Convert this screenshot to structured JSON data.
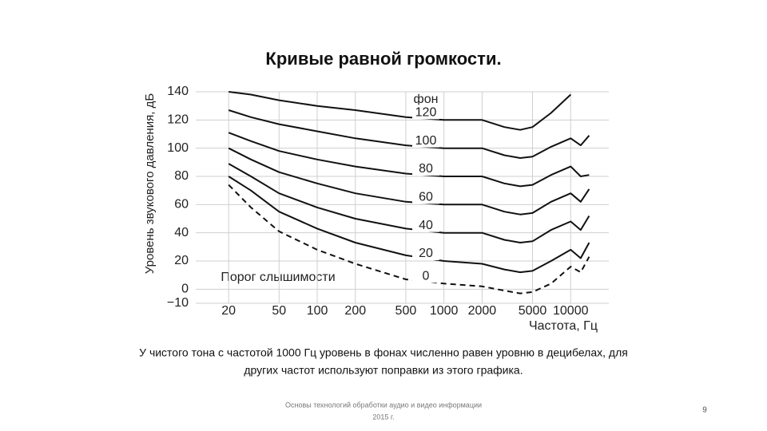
{
  "slide": {
    "title": "Кривые равной громкости.",
    "caption": [
      "У чистого тона с частотой 1000 Гц уровень в фонах численно равен уровню в децибелах, для",
      "других частот используют поправки из этого графика."
    ],
    "footer": [
      "Основы технологий обработки аудио и видео информации",
      "2015 г."
    ],
    "page_number": "9"
  },
  "chart_data": {
    "type": "line",
    "x_label": "Частота, Гц",
    "y_label": "Уровень звукового давления, дБ",
    "legend_title": "фон",
    "annotation": "Порог слышимости",
    "x_log": true,
    "grid": true,
    "xlim": [
      11,
      20000
    ],
    "ylim": [
      -10,
      140
    ],
    "xticks": [
      20,
      50,
      100,
      200,
      500,
      1000,
      2000,
      5000,
      10000
    ],
    "yticks": [
      {
        "value": -10,
        "label": "−10"
      },
      0,
      20,
      40,
      60,
      80,
      100,
      120,
      140
    ],
    "x": [
      20,
      30,
      50,
      100,
      200,
      500,
      1000,
      2000,
      3000,
      4000,
      5000,
      7000,
      10000,
      12000,
      14000
    ],
    "series": [
      {
        "name": "120",
        "color": "#111111",
        "dashed": false,
        "values": [
          140,
          138,
          134,
          130,
          127,
          122,
          120,
          120,
          115,
          113,
          115,
          125,
          138,
          null,
          null
        ]
      },
      {
        "name": "100",
        "color": "#111111",
        "dashed": false,
        "values": [
          127,
          122,
          117,
          112,
          107,
          102,
          100,
          100,
          95,
          93,
          94,
          101,
          107,
          102,
          109
        ]
      },
      {
        "name": "80",
        "color": "#111111",
        "dashed": false,
        "values": [
          111,
          105,
          98,
          92,
          87,
          82,
          80,
          80,
          75,
          73,
          74,
          81,
          87,
          80,
          81
        ]
      },
      {
        "name": "60",
        "color": "#111111",
        "dashed": false,
        "values": [
          100,
          92,
          83,
          75,
          68,
          62,
          60,
          60,
          55,
          53,
          54,
          62,
          68,
          62,
          71
        ]
      },
      {
        "name": "40",
        "color": "#111111",
        "dashed": false,
        "values": [
          89,
          80,
          68,
          58,
          50,
          43,
          40,
          40,
          35,
          33,
          34,
          42,
          48,
          42,
          52
        ]
      },
      {
        "name": "20",
        "color": "#111111",
        "dashed": false,
        "values": [
          80,
          70,
          55,
          43,
          33,
          24,
          20,
          18,
          14,
          12,
          13,
          20,
          28,
          22,
          33
        ]
      },
      {
        "name": "0",
        "color": "#111111",
        "dashed": true,
        "values": [
          74,
          58,
          41,
          28,
          18,
          7,
          4,
          2,
          -1,
          -3,
          -2,
          4,
          16,
          12,
          23
        ]
      }
    ]
  }
}
